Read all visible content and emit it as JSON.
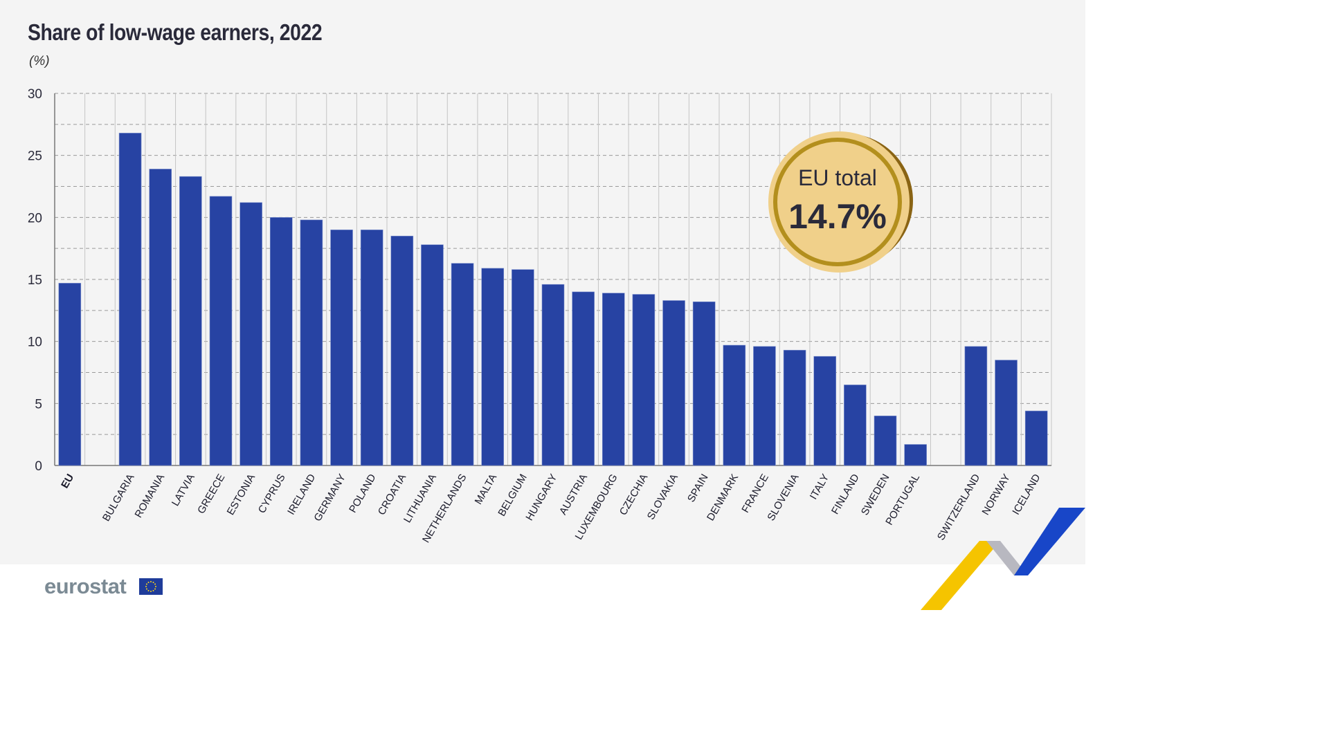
{
  "chart_data": {
    "type": "bar",
    "title": "Share of low-wage earners, 2022",
    "ylabel": "(%)",
    "ylim": [
      0,
      30
    ],
    "yticks": [
      0,
      5,
      10,
      15,
      20,
      25,
      30
    ],
    "grid": true,
    "categories": [
      "EU",
      "BULGARIA",
      "ROMANIA",
      "LATVIA",
      "GREECE",
      "ESTONIA",
      "CYPRUS",
      "IRELAND",
      "GERMANY",
      "POLAND",
      "CROATIA",
      "LITHUANIA",
      "NETHERLANDS",
      "MALTA",
      "BELGIUM",
      "HUNGARY",
      "AUSTRIA",
      "LUXEMBOURG",
      "CZECHIA",
      "SLOVAKIA",
      "SPAIN",
      "DENMARK",
      "FRANCE",
      "SLOVENIA",
      "ITALY",
      "FINLAND",
      "SWEDEN",
      "PORTUGAL",
      "SWITZERLAND",
      "NORWAY",
      "ICELAND"
    ],
    "values": [
      14.7,
      26.8,
      23.9,
      23.3,
      21.7,
      21.2,
      20.0,
      19.8,
      19.0,
      19.0,
      18.5,
      17.8,
      16.3,
      15.9,
      15.8,
      14.6,
      14.0,
      13.9,
      13.8,
      13.3,
      13.2,
      9.7,
      9.6,
      9.3,
      8.8,
      6.5,
      4.0,
      1.7,
      9.6,
      8.5,
      4.4
    ],
    "bar_color": "#2743a3",
    "annotation": {
      "label": "EU total",
      "value": "14.7%"
    }
  },
  "brand": {
    "name": "eurostat"
  },
  "colors": {
    "background": "#f4f4f4",
    "coin": "#f0d08a",
    "coin_ring": "#b38f1d"
  }
}
